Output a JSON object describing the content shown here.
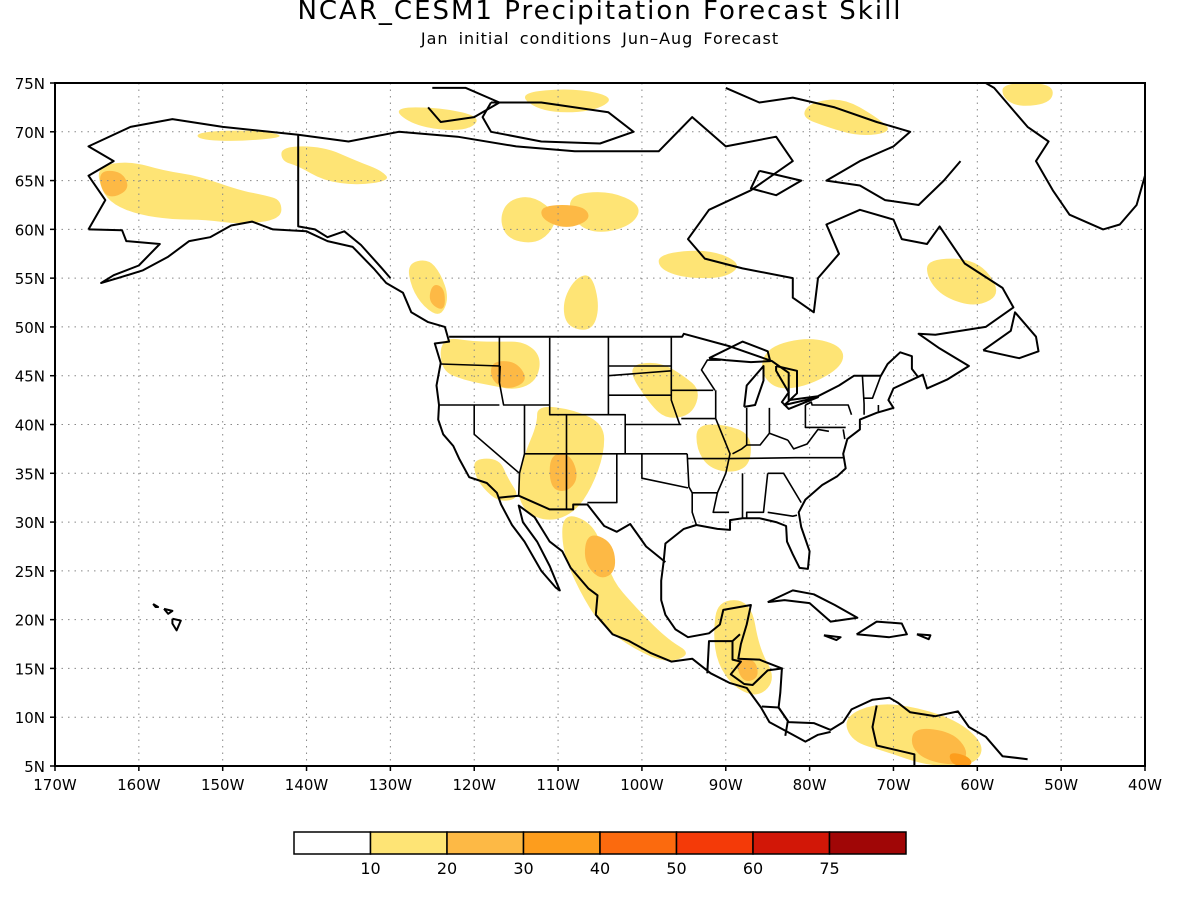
{
  "title": "NCAR_CESM1 Precipitation Forecast Skill",
  "subtitle": "Jan initial conditions  Jun–Aug Forecast",
  "map": {
    "projection": "cylindrical-equidistant",
    "region": "North America",
    "lon_range": [
      -170,
      -40
    ],
    "lat_range": [
      5,
      75
    ],
    "grid": "dotted",
    "lon_labels": [
      "170W",
      "160W",
      "150W",
      "140W",
      "130W",
      "120W",
      "110W",
      "100W",
      "90W",
      "80W",
      "70W",
      "60W",
      "50W",
      "40W"
    ],
    "lat_labels": [
      "5N",
      "10N",
      "15N",
      "20N",
      "25N",
      "30N",
      "35N",
      "40N",
      "45N",
      "50N",
      "55N",
      "60N",
      "65N",
      "70N",
      "75N"
    ]
  },
  "colorbar": {
    "labels": [
      "10",
      "20",
      "30",
      "40",
      "50",
      "60",
      "75"
    ],
    "colors": [
      "#ffffff",
      "#fee475",
      "#fdb945",
      "#fd9d1d",
      "#fb6a0e",
      "#f43a08",
      "#d21707",
      "#a00606"
    ]
  },
  "skill_regions": [
    {
      "level": 1,
      "name": "alaska",
      "pts": [
        [
          -165,
          66.5
        ],
        [
          -161,
          67
        ],
        [
          -157,
          66
        ],
        [
          -153,
          65.5
        ],
        [
          -148,
          64
        ],
        [
          -145,
          63.5
        ],
        [
          -143,
          63
        ],
        [
          -143,
          61
        ],
        [
          -148,
          60.5
        ],
        [
          -152,
          61
        ],
        [
          -156,
          61
        ],
        [
          -160,
          61.5
        ],
        [
          -163,
          62.5
        ],
        [
          -164.5,
          64
        ]
      ]
    },
    {
      "level": 1,
      "name": "yukon",
      "pts": [
        [
          -143,
          68.5
        ],
        [
          -138,
          68.5
        ],
        [
          -134,
          67
        ],
        [
          -131,
          66
        ],
        [
          -130,
          65
        ],
        [
          -134,
          64.5
        ],
        [
          -138,
          65
        ],
        [
          -141,
          66.5
        ],
        [
          -143,
          67
        ]
      ]
    },
    {
      "level": 1,
      "name": "n-alaska-coast",
      "pts": [
        [
          -153,
          70
        ],
        [
          -146,
          70.2
        ],
        [
          -142,
          69.5
        ],
        [
          -148,
          69
        ],
        [
          -153,
          69.2
        ]
      ]
    },
    {
      "level": 1,
      "name": "bc-coast",
      "pts": [
        [
          -128,
          56.5
        ],
        [
          -125.5,
          57
        ],
        [
          -124,
          55.5
        ],
        [
          -123,
          53
        ],
        [
          -124,
          51
        ],
        [
          -126,
          52
        ],
        [
          -127.5,
          54
        ]
      ]
    },
    {
      "level": 1,
      "name": "nw-canada-river",
      "pts": [
        [
          -116,
          63
        ],
        [
          -113,
          63.5
        ],
        [
          -110,
          61.5
        ],
        [
          -111,
          59.5
        ],
        [
          -113,
          58.5
        ],
        [
          -116,
          59
        ],
        [
          -117,
          61
        ]
      ]
    },
    {
      "level": 1,
      "name": "hudson-west",
      "pts": [
        [
          -109,
          63.5
        ],
        [
          -104,
          64
        ],
        [
          -100,
          62.5
        ],
        [
          -101,
          60.5
        ],
        [
          -105,
          59.5
        ],
        [
          -108,
          60.5
        ]
      ]
    },
    {
      "level": 1,
      "name": "manitoba",
      "pts": [
        [
          -98,
          57.5
        ],
        [
          -92,
          58
        ],
        [
          -88,
          56.5
        ],
        [
          -90,
          55
        ],
        [
          -95,
          55
        ],
        [
          -98,
          56
        ]
      ]
    },
    {
      "level": 1,
      "name": "sask",
      "pts": [
        [
          -108,
          55
        ],
        [
          -106,
          55.5
        ],
        [
          -105,
          52
        ],
        [
          -106,
          49.5
        ],
        [
          -109,
          50
        ],
        [
          -109.5,
          52.5
        ]
      ]
    },
    {
      "level": 1,
      "name": "pac-nw",
      "pts": [
        [
          -124,
          49
        ],
        [
          -120,
          48.5
        ],
        [
          -117,
          48.5
        ],
        [
          -114,
          48.5
        ],
        [
          -112,
          47
        ],
        [
          -112.5,
          44.5
        ],
        [
          -115,
          43.5
        ],
        [
          -118,
          44
        ],
        [
          -121,
          44.5
        ],
        [
          -124,
          45.5
        ]
      ]
    },
    {
      "level": 1,
      "name": "southwest",
      "pts": [
        [
          -112.5,
          42
        ],
        [
          -108,
          41.5
        ],
        [
          -104.5,
          40
        ],
        [
          -104.5,
          37
        ],
        [
          -106,
          33.5
        ],
        [
          -108,
          31
        ],
        [
          -111,
          30
        ],
        [
          -114,
          31
        ],
        [
          -115,
          33.5
        ],
        [
          -114,
          37
        ],
        [
          -112.5,
          40
        ]
      ]
    },
    {
      "level": 1,
      "name": "socal",
      "pts": [
        [
          -120,
          36.5
        ],
        [
          -117,
          36.5
        ],
        [
          -116,
          34.5
        ],
        [
          -114.5,
          32.5
        ],
        [
          -117,
          32
        ],
        [
          -119,
          33.5
        ],
        [
          -120,
          35
        ]
      ]
    },
    {
      "level": 1,
      "name": "mexico",
      "pts": [
        [
          -109.5,
          31
        ],
        [
          -106,
          30
        ],
        [
          -104.5,
          27
        ],
        [
          -103.5,
          24
        ],
        [
          -101,
          21.5
        ],
        [
          -97,
          18
        ],
        [
          -94,
          16.5
        ],
        [
          -97,
          15.5
        ],
        [
          -101,
          17
        ],
        [
          -105,
          19.5
        ],
        [
          -107.5,
          23
        ],
        [
          -109.5,
          27
        ]
      ]
    },
    {
      "level": 1,
      "name": "nebraska",
      "pts": [
        [
          -102,
          46
        ],
        [
          -98,
          46.5
        ],
        [
          -95,
          45
        ],
        [
          -93,
          43.5
        ],
        [
          -94,
          41
        ],
        [
          -97,
          40.5
        ],
        [
          -99,
          42
        ]
      ]
    },
    {
      "level": 1,
      "name": "arkansas",
      "pts": [
        [
          -93.5,
          40
        ],
        [
          -90,
          40
        ],
        [
          -87,
          39
        ],
        [
          -87,
          36
        ],
        [
          -89,
          35
        ],
        [
          -92,
          35.5
        ],
        [
          -93.5,
          37.5
        ]
      ]
    },
    {
      "level": 1,
      "name": "ontario",
      "pts": [
        [
          -85,
          48
        ],
        [
          -80,
          49
        ],
        [
          -76,
          48
        ],
        [
          -76,
          46
        ],
        [
          -80,
          44
        ],
        [
          -84,
          43.5
        ],
        [
          -86,
          45.5
        ]
      ]
    },
    {
      "level": 1,
      "name": "central-america",
      "pts": [
        [
          -91,
          22
        ],
        [
          -87,
          22
        ],
        [
          -86,
          17
        ],
        [
          -84,
          14
        ],
        [
          -86,
          12
        ],
        [
          -89,
          13
        ],
        [
          -91,
          15.5
        ],
        [
          -91.5,
          18.5
        ]
      ]
    },
    {
      "level": 1,
      "name": "venezuela",
      "pts": [
        [
          -76,
          10
        ],
        [
          -72,
          11.5
        ],
        [
          -67,
          11
        ],
        [
          -62,
          9.5
        ],
        [
          -59,
          7
        ],
        [
          -60.5,
          5
        ],
        [
          -66,
          5
        ],
        [
          -71,
          6.5
        ],
        [
          -75,
          7.5
        ]
      ]
    },
    {
      "level": 1,
      "name": "baffin",
      "pts": [
        [
          -80,
          73
        ],
        [
          -76,
          73.5
        ],
        [
          -72,
          71.5
        ],
        [
          -70,
          70
        ],
        [
          -74,
          69.5
        ],
        [
          -78,
          70.5
        ],
        [
          -81,
          71.5
        ]
      ]
    },
    {
      "level": 1,
      "name": "greenland",
      "pts": [
        [
          -57,
          75
        ],
        [
          -51,
          75
        ],
        [
          -51,
          73
        ],
        [
          -55,
          72.5
        ],
        [
          -57,
          73.5
        ]
      ]
    },
    {
      "level": 1,
      "name": "labrador",
      "pts": [
        [
          -66,
          57
        ],
        [
          -60,
          57
        ],
        [
          -57,
          53.5
        ],
        [
          -60,
          52
        ],
        [
          -64,
          53
        ],
        [
          -66,
          55
        ]
      ]
    },
    {
      "level": 1,
      "name": "arctic-west",
      "pts": [
        [
          -130,
          72.5
        ],
        [
          -124,
          72.5
        ],
        [
          -119,
          71.5
        ],
        [
          -121,
          70
        ],
        [
          -127,
          70.5
        ]
      ]
    },
    {
      "level": 1,
      "name": "arctic-mid",
      "pts": [
        [
          -115,
          74
        ],
        [
          -108,
          74.5
        ],
        [
          -103,
          73.5
        ],
        [
          -106,
          72
        ],
        [
          -112,
          72
        ]
      ]
    },
    {
      "level": 2,
      "name": "alaska-core",
      "pts": [
        [
          -165,
          66
        ],
        [
          -162,
          66
        ],
        [
          -161,
          64
        ],
        [
          -164,
          63
        ]
      ]
    },
    {
      "level": 2,
      "name": "nwt-core",
      "pts": [
        [
          -112,
          62.5
        ],
        [
          -107,
          62.5
        ],
        [
          -106,
          61
        ],
        [
          -109,
          60
        ],
        [
          -112,
          61
        ]
      ]
    },
    {
      "level": 2,
      "name": "bc-core",
      "pts": [
        [
          -125,
          54.5
        ],
        [
          -123.5,
          54
        ],
        [
          -123.5,
          51.5
        ],
        [
          -125.5,
          52.5
        ]
      ]
    },
    {
      "level": 2,
      "name": "idaho-core",
      "pts": [
        [
          -118,
          46.5
        ],
        [
          -115,
          46.5
        ],
        [
          -113.5,
          44.5
        ],
        [
          -116,
          43.5
        ],
        [
          -118,
          44.5
        ]
      ]
    },
    {
      "level": 2,
      "name": "4corners-core",
      "pts": [
        [
          -111,
          37
        ],
        [
          -108.5,
          37
        ],
        [
          -107.5,
          34.5
        ],
        [
          -109,
          33
        ],
        [
          -111,
          33.5
        ]
      ]
    },
    {
      "level": 2,
      "name": "sierra-madre-core",
      "pts": [
        [
          -106.5,
          29
        ],
        [
          -103.5,
          28
        ],
        [
          -103,
          25
        ],
        [
          -105,
          24
        ],
        [
          -107,
          26
        ]
      ]
    },
    {
      "level": 2,
      "name": "central-am-core",
      "pts": [
        [
          -89,
          16
        ],
        [
          -86.5,
          16
        ],
        [
          -86,
          14
        ],
        [
          -88,
          13.5
        ]
      ]
    },
    {
      "level": 2,
      "name": "venezuela-core",
      "pts": [
        [
          -67.5,
          9
        ],
        [
          -63,
          8.5
        ],
        [
          -61,
          6.5
        ],
        [
          -62,
          5
        ],
        [
          -66,
          5.5
        ],
        [
          -68,
          7
        ]
      ]
    },
    {
      "level": 3,
      "name": "venezuela-peak",
      "pts": [
        [
          -63.5,
          6.5
        ],
        [
          -61,
          6
        ],
        [
          -60.5,
          5
        ],
        [
          -63,
          5
        ]
      ]
    }
  ]
}
